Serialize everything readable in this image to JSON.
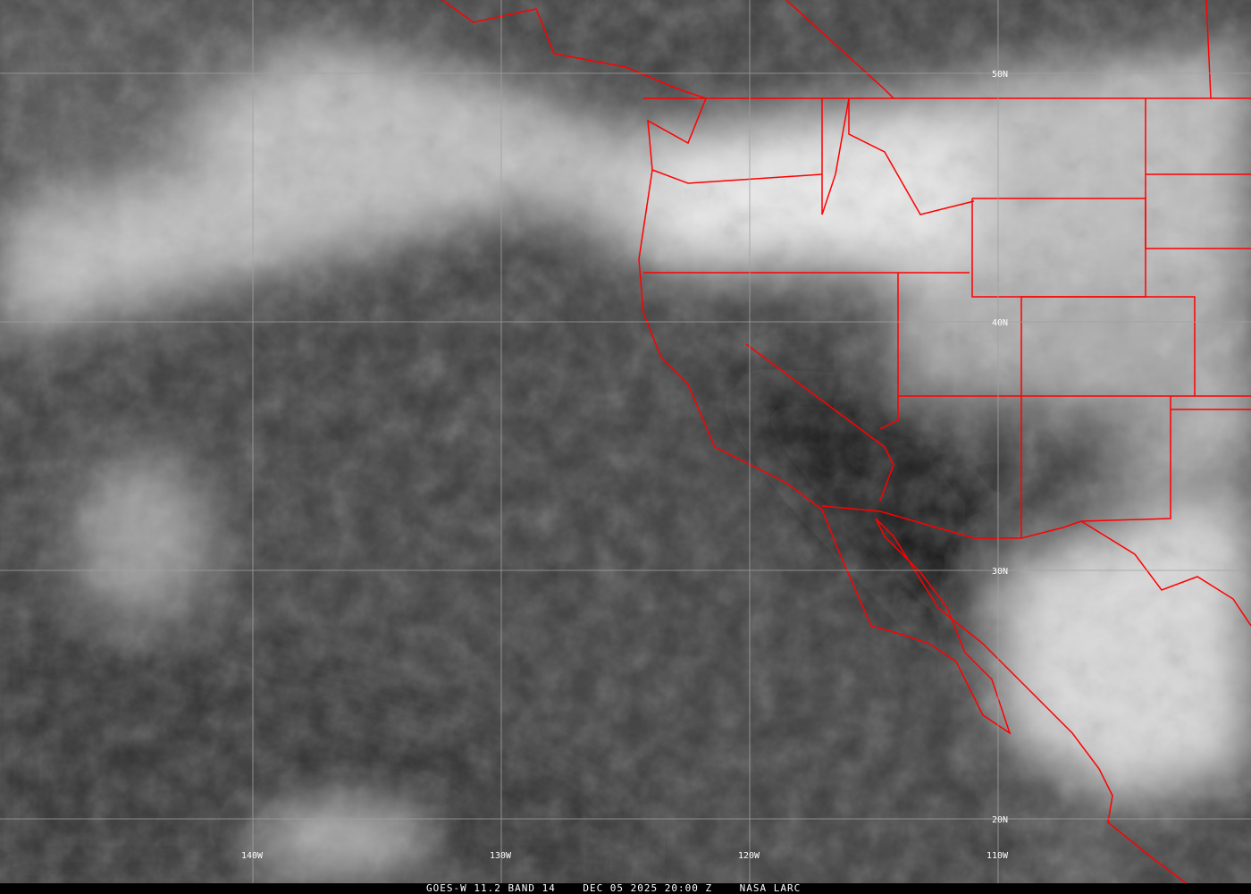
{
  "footer": {
    "caption": "GOES-W 11.2 BAND 14    DEC 05 2025 20:00 Z    NASA LARC"
  },
  "grid": {
    "latitudes": [
      "50N",
      "40N",
      "30N",
      "20N"
    ],
    "longitudes": [
      "140W",
      "130W",
      "120W",
      "110W"
    ]
  },
  "colors": {
    "boundaries": "#ff0000",
    "grid": "#a0a0a0",
    "text": "#ffffff"
  }
}
